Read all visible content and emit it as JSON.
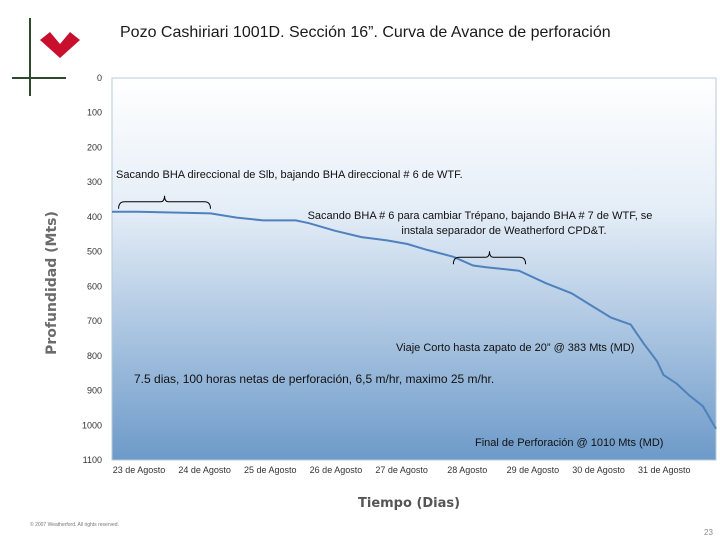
{
  "title": "Pozo Cashiriari 1001D. Sección 16”.  Curva de Avance de perforación",
  "footer": {
    "copyright": "© 2007 Weatherford. All rights reserved.",
    "page_number": "23"
  },
  "colors": {
    "logo": "#c8102e",
    "cross": "#2e4a2e",
    "plot_top": "#ffffff",
    "plot_bottom": "#6d9ac9",
    "line": "#4f81bd"
  },
  "chart_data": {
    "type": "line",
    "xlabel": "Tiempo (Dias)",
    "ylabel": "Profundidad (Mts)",
    "ylim": [
      1100,
      0
    ],
    "y_inverted": true,
    "yticks": [
      0,
      100,
      200,
      300,
      400,
      500,
      600,
      700,
      800,
      900,
      1000,
      1100
    ],
    "ytick_labels": [
      "0",
      "100",
      "200",
      "300",
      "400",
      "500",
      "600",
      "700",
      "800",
      "900",
      "1000",
      "1100"
    ],
    "xlim": [
      23,
      32.2
    ],
    "xticks": [
      23,
      24,
      25,
      26,
      27,
      28,
      29,
      30,
      31
    ],
    "xtick_labels": [
      "23 de Agosto",
      "24 de Agosto",
      "25 de Agosto",
      "26 de Agosto",
      "27 de Agosto",
      "28 Agosto",
      "29 de Agosto",
      "30 de Agosto",
      "31 de Agosto"
    ],
    "series": [
      {
        "x": [
          23.0,
          23.4,
          24.5,
          24.9,
          25.3,
          25.8,
          26.0,
          26.4,
          26.8,
          27.2,
          27.5,
          27.8,
          28.2,
          28.5,
          28.7,
          29.2,
          29.6,
          30.0,
          30.3,
          30.6,
          30.9,
          31.1,
          31.3,
          31.4,
          31.6,
          31.8,
          32.0,
          32.2
        ],
        "y": [
          385,
          385,
          390,
          402,
          410,
          410,
          418,
          440,
          458,
          468,
          478,
          495,
          515,
          540,
          545,
          555,
          590,
          620,
          655,
          690,
          710,
          765,
          815,
          855,
          880,
          915,
          945,
          1010
        ]
      }
    ],
    "annotations": [
      {
        "text": "Sacando BHA direccional de Slb, bajando BHA direccional # 6 de WTF.",
        "x_range": [
          23.1,
          24.5
        ],
        "depth": 385
      },
      {
        "text": "Sacando BHA # 6 para cambiar Trépano, bajando BHA # 7 de WTF, se",
        "text2": "instala separador de Weatherford CPD&T.",
        "x_range": [
          28.2,
          29.3
        ],
        "depth": 545
      },
      {
        "text": "Viaje Corto hasta zapato de 20” @ 383 Mts (MD)"
      },
      {
        "text": "7.5 dias,  100 horas netas de perforación, 6,5 m/hr,  maximo 25 m/hr."
      },
      {
        "text": "Final de Perforación @ 1010 Mts (MD)"
      }
    ]
  }
}
